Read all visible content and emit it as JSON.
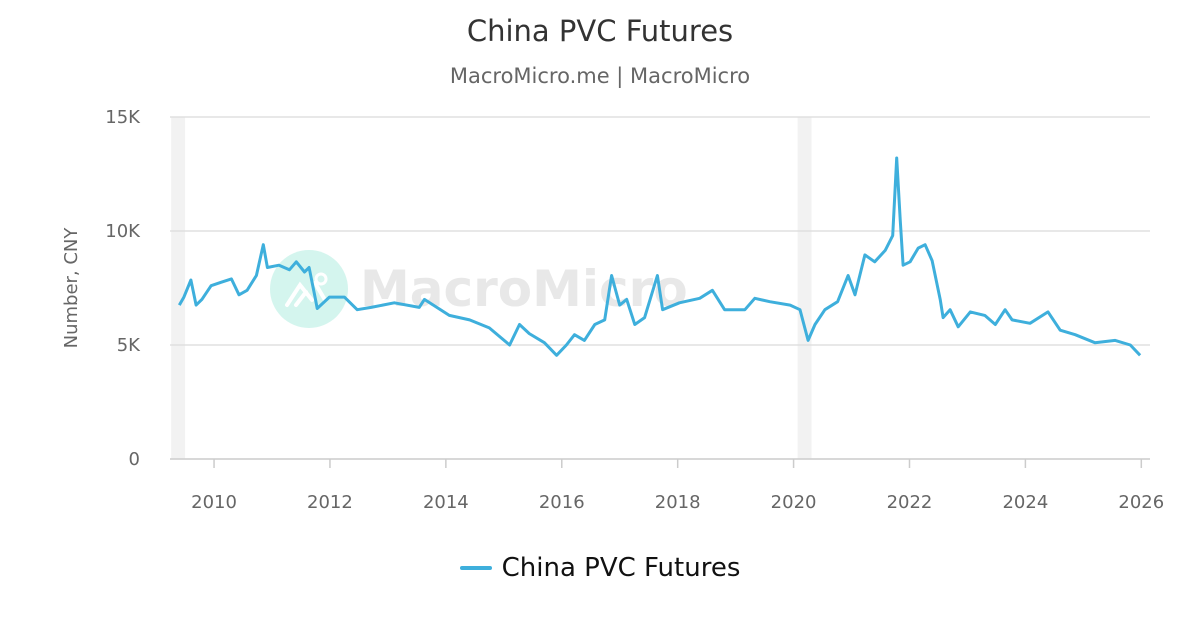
{
  "title": "China PVC Futures",
  "subtitle": "MacroMicro.me | MacroMicro",
  "watermark": "MacroMicro",
  "colors": {
    "series": "#3eafdc",
    "grid": "#e0e0e0",
    "shade": "#f2f2f2",
    "watermark_logo": "#d4f5ee",
    "watermark_text": "#e8e8e8"
  },
  "chart_data": {
    "type": "line",
    "title": "China PVC Futures",
    "ylabel": "Number, CNY",
    "xlabel": "",
    "xlim": [
      2009.24,
      2026.15
    ],
    "ylim": [
      0,
      15000
    ],
    "x_ticks": [
      "2010",
      "2012",
      "2014",
      "2016",
      "2018",
      "2020",
      "2022",
      "2024",
      "2026"
    ],
    "y_ticks": [
      "0",
      "5K",
      "10K",
      "15K"
    ],
    "grid": "horizontal",
    "legend": "bottom-center",
    "shaded_periods": [
      [
        2009.26,
        2009.5
      ],
      [
        2020.07,
        2020.31
      ]
    ],
    "series": [
      {
        "name": "China PVC Futures",
        "x": [
          2009.4,
          2009.48,
          2009.6,
          2009.69,
          2009.79,
          2009.95,
          2010.12,
          2010.3,
          2010.43,
          2010.57,
          2010.73,
          2010.85,
          2010.92,
          2011.12,
          2011.3,
          2011.42,
          2011.56,
          2011.64,
          2011.75,
          2011.78,
          2011.99,
          2012.25,
          2012.47,
          2012.71,
          2013.11,
          2013.54,
          2013.63,
          2014.06,
          2014.41,
          2014.75,
          2015.1,
          2015.27,
          2015.44,
          2015.7,
          2015.91,
          2016.08,
          2016.22,
          2016.39,
          2016.57,
          2016.74,
          2016.86,
          2017.0,
          2017.12,
          2017.26,
          2017.43,
          2017.65,
          2017.74,
          2018.03,
          2018.38,
          2018.6,
          2018.81,
          2019.16,
          2019.33,
          2019.59,
          2019.94,
          2020.11,
          2020.25,
          2020.37,
          2020.54,
          2020.76,
          2020.94,
          2021.06,
          2021.23,
          2021.4,
          2021.58,
          2021.71,
          2021.78,
          2021.84,
          2021.89,
          2022.01,
          2022.15,
          2022.27,
          2022.39,
          2022.53,
          2022.58,
          2022.7,
          2022.84,
          2023.05,
          2023.3,
          2023.48,
          2023.65,
          2023.77,
          2024.08,
          2024.39,
          2024.6,
          2024.86,
          2025.2,
          2025.55,
          2025.81,
          2025.98
        ],
        "values": [
          6750,
          7100,
          7850,
          6750,
          7000,
          7600,
          7750,
          7900,
          7200,
          7400,
          8050,
          9400,
          8400,
          8500,
          8300,
          8650,
          8200,
          8400,
          7000,
          6600,
          7100,
          7100,
          6550,
          6650,
          6850,
          6650,
          7000,
          6300,
          6100,
          5750,
          5000,
          5900,
          5500,
          5100,
          4550,
          5000,
          5450,
          5200,
          5900,
          6100,
          8050,
          6750,
          7000,
          5900,
          6200,
          8050,
          6550,
          6850,
          7050,
          7400,
          6550,
          6550,
          7050,
          6900,
          6750,
          6550,
          5200,
          5900,
          6550,
          6900,
          8050,
          7200,
          8950,
          8650,
          9150,
          9800,
          13200,
          10500,
          8500,
          8650,
          9250,
          9400,
          8700,
          7000,
          6200,
          6550,
          5800,
          6450,
          6300,
          5900,
          6550,
          6100,
          5950,
          6450,
          5650,
          5450,
          5100,
          5200,
          5000,
          4550
        ]
      }
    ]
  }
}
